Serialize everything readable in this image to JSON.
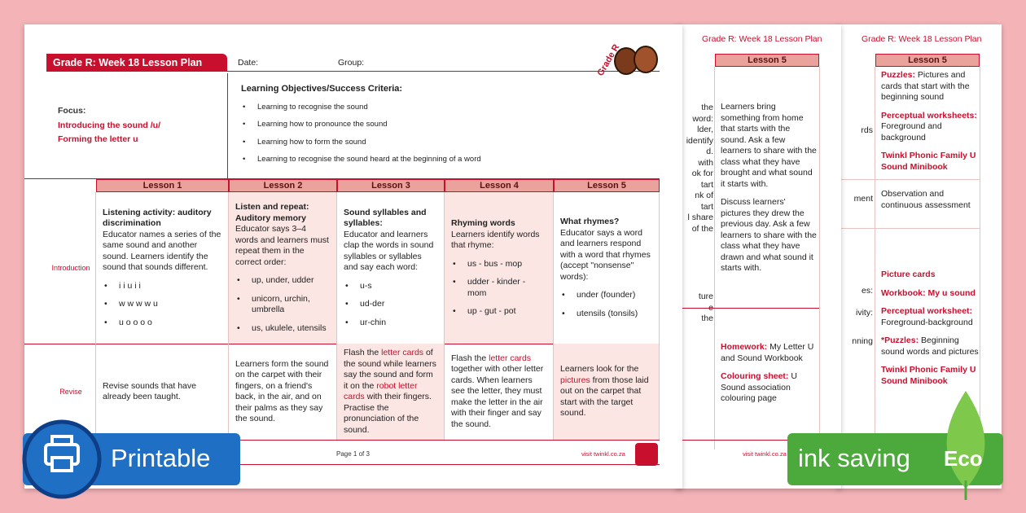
{
  "front_page": {
    "header_title": "Grade R: Week 18 Lesson Plan",
    "date_label": "Date:",
    "group_label": "Group:",
    "grade_badge": "Grade R",
    "focus": {
      "label": "Focus:",
      "lines": [
        "Introducing the sound /u/",
        "Forming the letter u"
      ]
    },
    "objectives": {
      "title": "Learning Objectives/Success Criteria:",
      "items": [
        "Learning to recognise the sound",
        "Learning how to pronounce the sound",
        "Learning how to form the sound",
        "Learning to recognise the sound heard at the beginning of a word"
      ]
    },
    "lessons": [
      "Lesson 1",
      "Lesson 2",
      "Lesson 3",
      "Lesson 4",
      "Lesson 5"
    ],
    "rows": [
      {
        "label": "Introduction",
        "cells": [
          {
            "heading": "Listening activity: auditory discrimination",
            "text": "Educator names a series of the same sound and another sound. Learners identify the sound that sounds different.",
            "bullets": [
              "i i u i i",
              "w w w w u",
              "u o o o o"
            ]
          },
          {
            "heading": "Listen and repeat: Auditory memory",
            "text": "Educator says 3–4 words and learners must repeat them in the correct order:",
            "bullets": [
              "up, under, udder",
              "unicorn, urchin, umbrella",
              "us, ukulele, utensils"
            ]
          },
          {
            "heading": "Sound syllables and syllables:",
            "text": "Educator and learners clap the words in sound syllables or syllables and say each word:",
            "bullets": [
              "u-s",
              "ud-der",
              "ur-chin"
            ]
          },
          {
            "heading": "Rhyming words",
            "text": "Learners identify words that rhyme:",
            "bullets": [
              "us - bus - mop",
              "udder - kinder - mom",
              "up - gut - pot"
            ]
          },
          {
            "heading": "What rhymes?",
            "text": "Educator says a word and learners respond with a word that rhymes (accept \"nonsense\" words):",
            "bullets": [
              "under (founder)",
              "utensils (tonsils)"
            ]
          }
        ]
      },
      {
        "label": "Revise",
        "cells": [
          {
            "segments": [
              "Revise sounds that have already been taught."
            ]
          },
          {
            "segments": [
              "Learners form the sound on the carpet with their fingers, on a friend's back, in the air, and on their palms as they say the sound."
            ]
          },
          {
            "segments": [
              "Flash the ",
              "letter cards",
              " of the sound while learners say the sound and form it on the ",
              "robot letter cards",
              " with their fingers. Practise the pronunciation of the sound."
            ]
          },
          {
            "segments": [
              "Flash the ",
              "letter cards",
              " together with other letter cards. When learners see the letter, they must make the letter in the air with their finger and say the sound."
            ]
          },
          {
            "segments": [
              "Learners look for the ",
              "pictures",
              " from those laid out on the carpet that start with the target sound."
            ]
          }
        ]
      }
    ],
    "footer_page": "Page 1 of 3",
    "footer_site": "visit twinkl.co.za"
  },
  "second_page": {
    "header_title": "Grade R: Week 18 Lesson Plan",
    "lesson": "Lesson 5",
    "clipped_fragments": [
      "the",
      "word:",
      "lder,",
      "identify",
      "d.",
      "with",
      "ok for",
      "tart",
      "nk of",
      "tart",
      "l share",
      "of the",
      "ture",
      "e",
      "the"
    ],
    "intro_paragraphs": [
      "Learners bring something from home that starts with the sound. Ask a few learners to share with the class what they have brought and what sound it starts with.",
      "Discuss learners' pictures they drew the previous day. Ask a few learners to share with the class what they have drawn and what sound it starts with."
    ],
    "resources": [
      {
        "label": "Homework:",
        "text": " My Letter U and Sound Workbook"
      },
      {
        "label": "Colouring sheet:",
        "text": " U Sound association colouring page"
      }
    ],
    "footer_site": "visit twinkl.co.za"
  },
  "third_page": {
    "header_title": "Grade R: Week 18 Lesson Plan",
    "lesson": "Lesson 5",
    "clipped_fragments": [
      "rds",
      "ment",
      "es:",
      "ivity:",
      "nning"
    ],
    "top_items": [
      {
        "label": "Puzzles:",
        "text": " Pictures and cards that start with the beginning sound"
      },
      {
        "label": "Perceptual worksheets:",
        "text": " Foreground and background"
      },
      {
        "label": "Twinkl Phonic Family U Sound Minibook",
        "text": ""
      }
    ],
    "assessment": "Observation and continuous assessment",
    "bottom_items": [
      {
        "label": "Picture cards",
        "text": ""
      },
      {
        "label": "Workbook: My u sound",
        "text": ""
      },
      {
        "label": "Perceptual worksheet:",
        "text": " Foreground-background"
      },
      {
        "label": "*Puzzles:",
        "text": " Beginning sound words and pictures"
      },
      {
        "label": "Twinkl Phonic Family U Sound Minibook",
        "text": ""
      }
    ]
  },
  "badges": {
    "printable": "Printable",
    "ink_saving": "ink saving",
    "eco": "Eco"
  }
}
